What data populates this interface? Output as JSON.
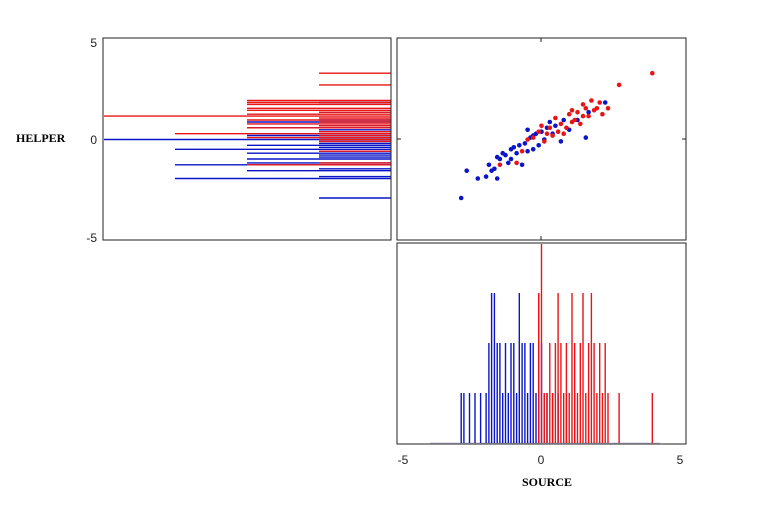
{
  "colors": {
    "group_a": "#0a14c8",
    "group_b": "#e81416",
    "axes": "#222222"
  },
  "chart_data": [
    {
      "type": "scatter",
      "panel": "joint",
      "xlabel": "SOURCE",
      "ylabel": "HELPER",
      "xlim": [
        -5,
        5
      ],
      "ylim": [
        -5,
        5
      ],
      "grid": false,
      "series": [
        {
          "color": "#0a14c8",
          "points": [
            [
              -2.9,
              -3.0
            ],
            [
              -2.7,
              -1.6
            ],
            [
              -2.3,
              -2.0
            ],
            [
              -2.0,
              -1.9
            ],
            [
              -1.9,
              -1.3
            ],
            [
              -1.8,
              -1.6
            ],
            [
              -1.7,
              -1.5
            ],
            [
              -1.6,
              -2.0
            ],
            [
              -1.6,
              -0.9
            ],
            [
              -1.5,
              -1.0
            ],
            [
              -1.4,
              -0.7
            ],
            [
              -1.3,
              -0.8
            ],
            [
              -1.2,
              -1.2
            ],
            [
              -1.1,
              -1.0
            ],
            [
              -1.1,
              -0.5
            ],
            [
              -1.0,
              -0.4
            ],
            [
              -0.9,
              -0.7
            ],
            [
              -0.8,
              -0.3
            ],
            [
              -0.7,
              -1.3
            ],
            [
              -0.6,
              -0.2
            ],
            [
              -0.5,
              -0.6
            ],
            [
              -0.5,
              0.5
            ],
            [
              -0.4,
              0.1
            ],
            [
              -0.3,
              0.2
            ],
            [
              -0.3,
              -0.5
            ],
            [
              -0.2,
              0.3
            ],
            [
              -0.1,
              -0.3
            ],
            [
              0.0,
              0.4
            ],
            [
              0.1,
              0.0
            ],
            [
              0.2,
              0.6
            ],
            [
              0.3,
              0.9
            ],
            [
              0.4,
              0.3
            ],
            [
              0.5,
              0.7
            ],
            [
              0.7,
              -0.1
            ],
            [
              0.8,
              1.0
            ],
            [
              1.0,
              0.5
            ],
            [
              1.3,
              1.0
            ],
            [
              1.6,
              0.1
            ],
            [
              1.7,
              1.4
            ],
            [
              2.3,
              1.9
            ]
          ]
        },
        {
          "color": "#e81416",
          "points": [
            [
              -1.5,
              -1.3
            ],
            [
              -0.9,
              -1.2
            ],
            [
              -0.7,
              -0.6
            ],
            [
              -0.5,
              0.0
            ],
            [
              -0.3,
              0.1
            ],
            [
              -0.1,
              0.4
            ],
            [
              0.0,
              0.7
            ],
            [
              0.1,
              -0.1
            ],
            [
              0.2,
              0.3
            ],
            [
              0.3,
              0.6
            ],
            [
              0.4,
              0.2
            ],
            [
              0.5,
              1.1
            ],
            [
              0.6,
              0.4
            ],
            [
              0.7,
              0.8
            ],
            [
              0.8,
              0.3
            ],
            [
              0.9,
              0.6
            ],
            [
              1.0,
              1.3
            ],
            [
              1.1,
              1.5
            ],
            [
              1.1,
              0.9
            ],
            [
              1.2,
              1.0
            ],
            [
              1.3,
              1.4
            ],
            [
              1.4,
              0.8
            ],
            [
              1.5,
              1.2
            ],
            [
              1.5,
              1.8
            ],
            [
              1.6,
              1.6
            ],
            [
              1.7,
              1.2
            ],
            [
              1.8,
              2.0
            ],
            [
              1.9,
              1.5
            ],
            [
              2.0,
              1.6
            ],
            [
              2.1,
              1.9
            ],
            [
              2.2,
              1.3
            ],
            [
              2.4,
              1.6
            ],
            [
              2.8,
              2.8
            ],
            [
              4.0,
              3.4
            ]
          ]
        }
      ]
    },
    {
      "type": "bar",
      "panel": "marginal-x",
      "xlabel": "SOURCE",
      "xlim": [
        -5,
        5
      ],
      "xticks": [
        "-5",
        "0",
        "5"
      ],
      "series": [
        {
          "color": "#0a14c8",
          "x": [
            -3.9,
            -3.7,
            -3.5,
            -3.2,
            -2.9,
            -2.8,
            -2.6,
            -2.4,
            -2.2,
            -2.0,
            -1.9,
            -1.8,
            -1.7,
            -1.6,
            -1.5,
            -1.4,
            -1.3,
            -1.2,
            -1.1,
            -1.0,
            -0.9,
            -0.8,
            -0.7,
            -0.6,
            -0.5,
            -0.4,
            -0.3,
            -0.2,
            -0.1,
            0.0,
            0.1,
            0.2,
            0.4,
            0.6,
            0.9,
            1.2
          ],
          "counts": [
            0,
            0,
            0,
            0,
            1,
            1,
            1,
            1,
            1,
            1,
            2,
            3,
            3,
            2,
            2,
            1,
            2,
            1,
            2,
            2,
            1,
            3,
            2,
            2,
            1,
            2,
            2,
            1,
            3,
            2,
            1,
            1,
            1,
            1,
            1,
            1
          ]
        },
        {
          "color": "#e81416",
          "x": [
            -0.1,
            0.0,
            0.1,
            0.2,
            0.3,
            0.4,
            0.5,
            0.6,
            0.7,
            0.8,
            0.9,
            1.0,
            1.1,
            1.2,
            1.3,
            1.4,
            1.5,
            1.6,
            1.7,
            1.8,
            1.9,
            2.0,
            2.1,
            2.2,
            2.3,
            2.4,
            2.8,
            4.0
          ],
          "counts": [
            3,
            5,
            1,
            1,
            2,
            1,
            2,
            3,
            2,
            1,
            2,
            1,
            3,
            2,
            1,
            2,
            3,
            1,
            2,
            3,
            2,
            1,
            2,
            1,
            2,
            1,
            1,
            1
          ]
        }
      ]
    },
    {
      "type": "bar",
      "panel": "marginal-y",
      "ylabel": "HELPER",
      "ylim": [
        -5,
        5
      ],
      "yticks": [
        "5",
        "0",
        "-5"
      ],
      "series": [
        {
          "color": "#0a14c8",
          "y": [
            -3.0,
            -2.0,
            -1.9,
            -1.6,
            -1.5,
            -1.3,
            -1.2,
            -1.0,
            -0.9,
            -0.8,
            -0.7,
            -0.6,
            -0.5,
            -0.4,
            -0.3,
            -0.2,
            -0.1,
            0.0,
            0.1,
            0.2,
            0.3,
            0.4,
            0.5,
            0.6,
            0.7,
            0.9,
            1.0,
            1.4,
            1.9
          ],
          "counts": [
            1,
            3,
            1,
            2,
            1,
            3,
            2,
            2,
            1,
            1,
            2,
            1,
            3,
            1,
            2,
            1,
            1,
            4,
            1,
            2,
            2,
            1,
            1,
            2,
            1,
            2,
            1,
            1,
            1
          ]
        },
        {
          "color": "#e81416",
          "y": [
            -1.3,
            -1.2,
            -0.6,
            -0.1,
            0.0,
            0.1,
            0.2,
            0.3,
            0.4,
            0.6,
            0.7,
            0.8,
            0.9,
            1.0,
            1.1,
            1.2,
            1.3,
            1.4,
            1.5,
            1.6,
            1.8,
            1.9,
            2.0,
            2.8,
            3.4
          ],
          "counts": [
            2,
            1,
            1,
            1,
            1,
            2,
            1,
            3,
            1,
            2,
            1,
            2,
            1,
            2,
            1,
            5,
            2,
            1,
            2,
            2,
            2,
            2,
            2,
            1,
            1
          ]
        }
      ]
    }
  ]
}
